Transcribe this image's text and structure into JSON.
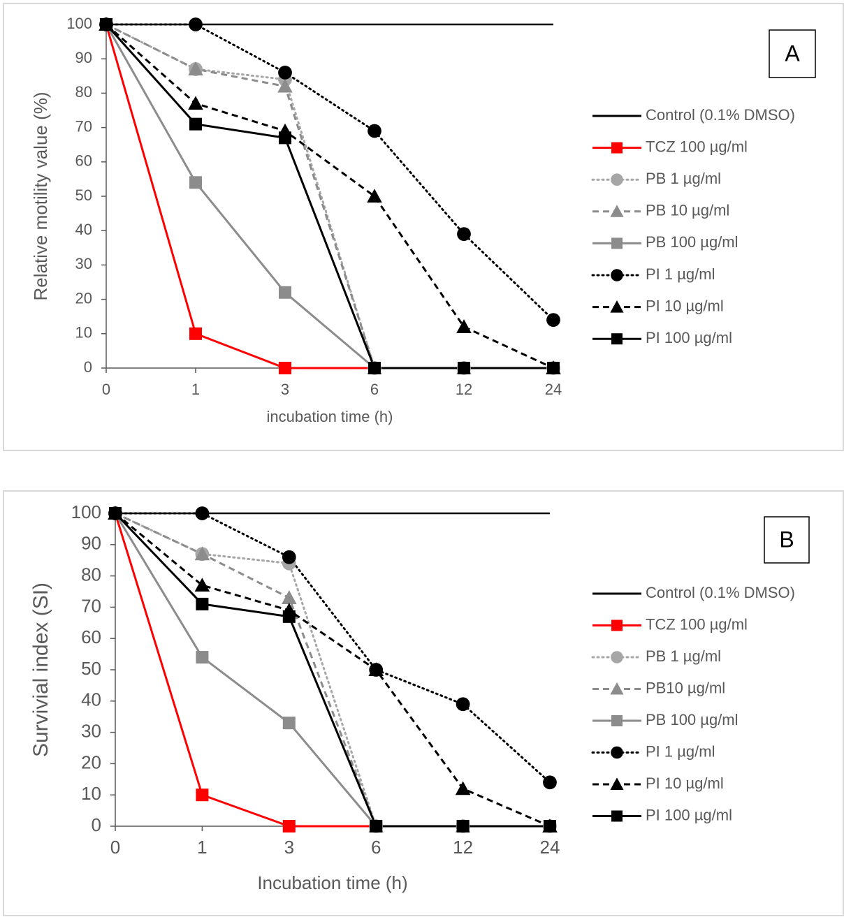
{
  "chart_data": [
    {
      "type": "line",
      "panel_label": "A",
      "x_label": "incubation time (h)",
      "y_label": "Relative motility value  (%)",
      "categories": [
        "0",
        "1",
        "3",
        "6",
        "12",
        "24"
      ],
      "ylim": [
        0,
        100
      ],
      "yticks": [
        0,
        10,
        20,
        30,
        40,
        50,
        60,
        70,
        80,
        90,
        100
      ],
      "series": [
        {
          "name": "Control (0.1% DMSO)",
          "color": "#000000",
          "line_style": "solid",
          "marker": "none",
          "values": [
            100,
            100,
            100,
            100,
            100,
            100
          ]
        },
        {
          "name": "TCZ 100 µg/ml",
          "color": "#ff0000",
          "line_style": "solid",
          "marker": "square",
          "values": [
            100,
            10,
            0,
            0,
            0,
            0
          ]
        },
        {
          "name": "PB 1 µg/ml",
          "color": "#a6a6a6",
          "line_style": "dotted",
          "marker": "circle",
          "values": [
            100,
            87,
            84,
            0,
            0,
            0
          ]
        },
        {
          "name": "PB 10 µg/ml",
          "color": "#8c8c8c",
          "line_style": "dashed",
          "marker": "triangle",
          "values": [
            100,
            87,
            82,
            0,
            0,
            0
          ]
        },
        {
          "name": "PB 100 µg/ml",
          "color": "#8c8c8c",
          "line_style": "solid",
          "marker": "square",
          "values": [
            100,
            54,
            22,
            0,
            0,
            0
          ]
        },
        {
          "name": "PI 1 µg/ml",
          "color": "#000000",
          "line_style": "dotted",
          "marker": "circle",
          "values": [
            100,
            100,
            86,
            69,
            39,
            14
          ]
        },
        {
          "name": "PI 10 µg/ml",
          "color": "#000000",
          "line_style": "dashed",
          "marker": "triangle",
          "values": [
            100,
            77,
            69,
            50,
            12,
            0
          ]
        },
        {
          "name": "PI 100 µg/ml",
          "color": "#000000",
          "line_style": "solid",
          "marker": "square",
          "values": [
            100,
            71,
            67,
            0,
            0,
            0
          ]
        }
      ]
    },
    {
      "type": "line",
      "panel_label": "B",
      "x_label": "Incubation time (h)",
      "y_label": "Survivial index (SI)",
      "categories": [
        "0",
        "1",
        "3",
        "6",
        "12",
        "24"
      ],
      "ylim": [
        0,
        100
      ],
      "yticks": [
        0,
        10,
        20,
        30,
        40,
        50,
        60,
        70,
        80,
        90,
        100
      ],
      "series": [
        {
          "name": "Control (0.1% DMSO)",
          "color": "#000000",
          "line_style": "solid",
          "marker": "none",
          "values": [
            100,
            100,
            100,
            100,
            100,
            100
          ]
        },
        {
          "name": "TCZ 100 µg/ml",
          "color": "#ff0000",
          "line_style": "solid",
          "marker": "square",
          "values": [
            100,
            10,
            0,
            0,
            0,
            0
          ]
        },
        {
          "name": "PB 1 µg/ml",
          "color": "#a6a6a6",
          "line_style": "dotted",
          "marker": "circle",
          "values": [
            100,
            87,
            84,
            0,
            0,
            0
          ]
        },
        {
          "name": "PB10 µg/ml",
          "color": "#8c8c8c",
          "line_style": "dashed",
          "marker": "triangle",
          "values": [
            100,
            87,
            73,
            0,
            0,
            0
          ]
        },
        {
          "name": "PB 100 µg/ml",
          "color": "#8c8c8c",
          "line_style": "solid",
          "marker": "square",
          "values": [
            100,
            54,
            33,
            0,
            0,
            0
          ]
        },
        {
          "name": "PI 1 µg/ml",
          "color": "#000000",
          "line_style": "dotted",
          "marker": "circle",
          "values": [
            100,
            100,
            86,
            50,
            39,
            14
          ]
        },
        {
          "name": "PI 10 µg/ml",
          "color": "#000000",
          "line_style": "dashed",
          "marker": "triangle",
          "values": [
            100,
            77,
            69,
            50,
            12,
            0
          ]
        },
        {
          "name": "PI 100 µg/ml",
          "color": "#000000",
          "line_style": "solid",
          "marker": "square",
          "values": [
            100,
            71,
            67,
            0,
            0,
            0
          ]
        }
      ]
    }
  ]
}
